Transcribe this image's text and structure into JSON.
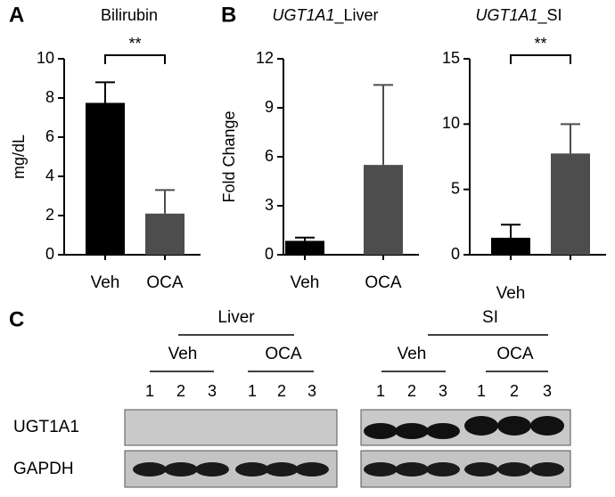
{
  "charts": [
    {
      "chart_data": {
        "type": "bar",
        "panel": "A",
        "title": [
          "",
          "Bilirubin"
        ],
        "y_label": "mg/dL",
        "categories": [
          "Veh",
          "OCA"
        ],
        "values": [
          7.75,
          2.1
        ],
        "errors": [
          1.05,
          1.2
        ],
        "colors": [
          "#000000",
          "#4d4d4d"
        ],
        "ylim": [
          0,
          10
        ],
        "yticks": [
          0,
          2,
          4,
          6,
          8,
          10
        ],
        "annotation": "**"
      }
    },
    {
      "chart_data": {
        "type": "bar",
        "panel": "B",
        "title": [
          "UGT1A1",
          "_Liver"
        ],
        "y_label": "Fold Change",
        "categories": [
          "Veh",
          "OCA"
        ],
        "values": [
          0.85,
          5.5
        ],
        "errors": [
          0.2,
          4.9
        ],
        "colors": [
          "#000000",
          "#4d4d4d"
        ],
        "ylim": [
          0,
          12
        ],
        "yticks": [
          0,
          3,
          6,
          9,
          12
        ]
      }
    },
    {
      "chart_data": {
        "type": "bar",
        "title": [
          "UGT1A1",
          "_SI"
        ],
        "categories": [
          "Veh",
          null
        ],
        "values": [
          1.3,
          7.75
        ],
        "errors": [
          1.0,
          2.25
        ],
        "colors": [
          "#000000",
          "#4d4d4d"
        ],
        "ylim": [
          0,
          15
        ],
        "yticks": [
          0,
          5,
          10,
          15
        ],
        "annotation": "**"
      }
    }
  ],
  "blot": {
    "panel": "C",
    "tissues": [
      {
        "name": "Liver",
        "groups": [
          {
            "name": "Veh",
            "lanes": [
              "1",
              "2",
              "3"
            ]
          },
          {
            "name": "OCA",
            "lanes": [
              "1",
              "2",
              "3"
            ]
          }
        ]
      },
      {
        "name": "SI",
        "groups": [
          {
            "name": "Veh",
            "lanes": [
              "1",
              "2",
              "3"
            ]
          },
          {
            "name": "OCA",
            "lanes": [
              "1",
              "2",
              "3"
            ]
          }
        ]
      }
    ],
    "rows": [
      "UGT1A1",
      "GAPDH"
    ]
  }
}
